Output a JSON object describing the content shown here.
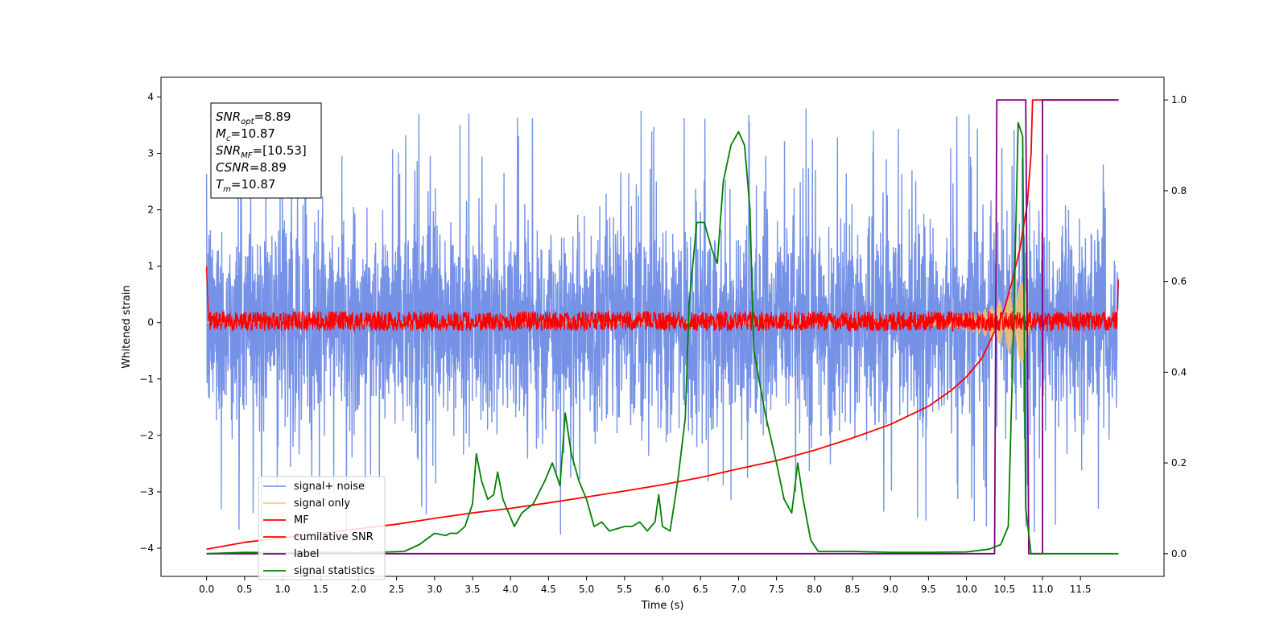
{
  "chart_data": {
    "type": "line",
    "xlabel": "Time (s)",
    "ylabel_left": "Whitened strain",
    "ylabel_right": "",
    "xlim": [
      -0.6,
      12.6
    ],
    "ylim_left": [
      -4.5,
      4.35
    ],
    "ylim_right": [
      -0.05,
      1.05
    ],
    "x_ticks": [
      0.0,
      0.5,
      1.0,
      1.5,
      2.0,
      2.5,
      3.0,
      3.5,
      4.0,
      4.5,
      5.0,
      5.5,
      6.0,
      6.5,
      7.0,
      7.5,
      8.0,
      8.5,
      9.0,
      9.5,
      10.0,
      10.5,
      11.0,
      11.5
    ],
    "x_tick_labels": [
      "0.0",
      "0.5",
      "1.0",
      "1.5",
      "2.0",
      "2.5",
      "3.0",
      "3.5",
      "4.0",
      "4.5",
      "5.0",
      "5.5",
      "6.0",
      "6.5",
      "7.0",
      "7.5",
      "8.0",
      "8.5",
      "9.0",
      "9.5",
      "10.0",
      "10.5",
      "11.0",
      "11.5"
    ],
    "y_left_ticks": [
      -4,
      -3,
      -2,
      -1,
      0,
      1,
      2,
      3,
      4
    ],
    "y_left_tick_labels": [
      "−4",
      "−3",
      "−2",
      "−1",
      "0",
      "1",
      "2",
      "3",
      "4"
    ],
    "y_right_ticks": [
      0.0,
      0.2,
      0.4,
      0.6,
      0.8,
      1.0
    ],
    "y_right_tick_labels": [
      "0.0",
      "0.2",
      "0.4",
      "0.6",
      "0.8",
      "1.0"
    ],
    "annotation": [
      {
        "main": "SNR",
        "sub": "opt",
        "rest": "=8.89"
      },
      {
        "main": "M",
        "sub": "c",
        "rest": "=10.87"
      },
      {
        "main": "SNR",
        "sub": "MF",
        "rest": "=[10.53]"
      },
      {
        "main": "CSNR",
        "sub": "",
        "rest": "=8.89"
      },
      {
        "main": "T",
        "sub": "m",
        "rest": "=10.87"
      }
    ],
    "legend_position": "lower-left",
    "series": [
      {
        "name": "signal+ noise",
        "color": "#6f8ce6",
        "axis": "left",
        "kind": "noise",
        "t_start": 0.0,
        "t_end": 12.0,
        "typical_range": [
          -2.0,
          2.0
        ],
        "extreme_range": [
          -4.1,
          3.9
        ]
      },
      {
        "name": "signal only",
        "color": "#f5c26b",
        "axis": "left",
        "kind": "chirp",
        "t_start": 0.0,
        "t_end": 10.87,
        "envelope": [
          [
            9.0,
            0.03
          ],
          [
            9.5,
            0.06
          ],
          [
            9.8,
            0.1
          ],
          [
            10.0,
            0.14
          ],
          [
            10.2,
            0.22
          ],
          [
            10.4,
            0.35
          ],
          [
            10.6,
            0.55
          ],
          [
            10.75,
            0.75
          ],
          [
            10.85,
            1.1
          ],
          [
            10.87,
            0.0
          ]
        ]
      },
      {
        "name": "MF",
        "color": "#ff0000",
        "axis": "left",
        "kind": "noise_band",
        "t_start": 0.0,
        "t_end": 12.0,
        "range": [
          -0.15,
          0.2
        ],
        "start_spike": 1.0,
        "end_spike": 0.9
      },
      {
        "name": "cumilative SNR",
        "color": "#ff0000",
        "axis": "right",
        "kind": "line",
        "points": [
          [
            0.0,
            0.01
          ],
          [
            0.5,
            0.025
          ],
          [
            1.0,
            0.035
          ],
          [
            1.5,
            0.045
          ],
          [
            2.0,
            0.055
          ],
          [
            2.5,
            0.065
          ],
          [
            3.0,
            0.078
          ],
          [
            3.5,
            0.09
          ],
          [
            4.0,
            0.1
          ],
          [
            4.5,
            0.112
          ],
          [
            5.0,
            0.125
          ],
          [
            5.5,
            0.138
          ],
          [
            6.0,
            0.152
          ],
          [
            6.5,
            0.168
          ],
          [
            7.0,
            0.187
          ],
          [
            7.5,
            0.205
          ],
          [
            8.0,
            0.228
          ],
          [
            8.5,
            0.255
          ],
          [
            9.0,
            0.285
          ],
          [
            9.5,
            0.325
          ],
          [
            9.8,
            0.36
          ],
          [
            10.0,
            0.39
          ],
          [
            10.2,
            0.43
          ],
          [
            10.4,
            0.5
          ],
          [
            10.5,
            0.54
          ],
          [
            10.6,
            0.6
          ],
          [
            10.7,
            0.67
          ],
          [
            10.8,
            0.77
          ],
          [
            10.85,
            0.88
          ],
          [
            10.87,
            1.0
          ],
          [
            12.0,
            1.0
          ]
        ]
      },
      {
        "name": "label",
        "color": "#800080",
        "axis": "right",
        "kind": "line",
        "points": [
          [
            0.0,
            0.0
          ],
          [
            10.37,
            0.0
          ],
          [
            10.4,
            1.0
          ],
          [
            10.78,
            1.0
          ],
          [
            10.82,
            0.0
          ],
          [
            11.0,
            0.0
          ],
          [
            11.0,
            1.0
          ],
          [
            12.0,
            1.0
          ]
        ]
      },
      {
        "name": "signal statistics",
        "color": "#008000",
        "axis": "right",
        "kind": "line",
        "points": [
          [
            0.0,
            0.0
          ],
          [
            0.5,
            0.003
          ],
          [
            1.0,
            0.002
          ],
          [
            1.5,
            0.003
          ],
          [
            2.0,
            0.002
          ],
          [
            2.4,
            0.004
          ],
          [
            2.6,
            0.005
          ],
          [
            2.8,
            0.02
          ],
          [
            3.0,
            0.045
          ],
          [
            3.15,
            0.04
          ],
          [
            3.2,
            0.045
          ],
          [
            3.3,
            0.045
          ],
          [
            3.4,
            0.06
          ],
          [
            3.5,
            0.11
          ],
          [
            3.55,
            0.22
          ],
          [
            3.62,
            0.16
          ],
          [
            3.7,
            0.12
          ],
          [
            3.78,
            0.13
          ],
          [
            3.83,
            0.18
          ],
          [
            3.9,
            0.12
          ],
          [
            4.0,
            0.08
          ],
          [
            4.05,
            0.06
          ],
          [
            4.15,
            0.09
          ],
          [
            4.3,
            0.11
          ],
          [
            4.45,
            0.16
          ],
          [
            4.55,
            0.2
          ],
          [
            4.65,
            0.15
          ],
          [
            4.72,
            0.31
          ],
          [
            4.8,
            0.22
          ],
          [
            4.9,
            0.16
          ],
          [
            5.0,
            0.12
          ],
          [
            5.1,
            0.06
          ],
          [
            5.2,
            0.07
          ],
          [
            5.3,
            0.05
          ],
          [
            5.5,
            0.06
          ],
          [
            5.6,
            0.06
          ],
          [
            5.7,
            0.07
          ],
          [
            5.8,
            0.05
          ],
          [
            5.9,
            0.07
          ],
          [
            5.95,
            0.13
          ],
          [
            6.0,
            0.06
          ],
          [
            6.1,
            0.05
          ],
          [
            6.2,
            0.16
          ],
          [
            6.3,
            0.3
          ],
          [
            6.35,
            0.55
          ],
          [
            6.45,
            0.73
          ],
          [
            6.55,
            0.73
          ],
          [
            6.65,
            0.67
          ],
          [
            6.72,
            0.64
          ],
          [
            6.8,
            0.82
          ],
          [
            6.9,
            0.9
          ],
          [
            7.0,
            0.93
          ],
          [
            7.08,
            0.9
          ],
          [
            7.15,
            0.76
          ],
          [
            7.2,
            0.45
          ],
          [
            7.35,
            0.31
          ],
          [
            7.5,
            0.2
          ],
          [
            7.6,
            0.12
          ],
          [
            7.7,
            0.09
          ],
          [
            7.78,
            0.2
          ],
          [
            7.85,
            0.12
          ],
          [
            7.95,
            0.03
          ],
          [
            8.05,
            0.005
          ],
          [
            8.5,
            0.005
          ],
          [
            9.0,
            0.003
          ],
          [
            9.5,
            0.003
          ],
          [
            10.0,
            0.004
          ],
          [
            10.3,
            0.01
          ],
          [
            10.45,
            0.02
          ],
          [
            10.55,
            0.06
          ],
          [
            10.62,
            0.5
          ],
          [
            10.68,
            0.95
          ],
          [
            10.74,
            0.92
          ],
          [
            10.78,
            0.1
          ],
          [
            10.85,
            0.0
          ],
          [
            11.0,
            0.0
          ],
          [
            12.0,
            0.0
          ]
        ]
      }
    ]
  }
}
